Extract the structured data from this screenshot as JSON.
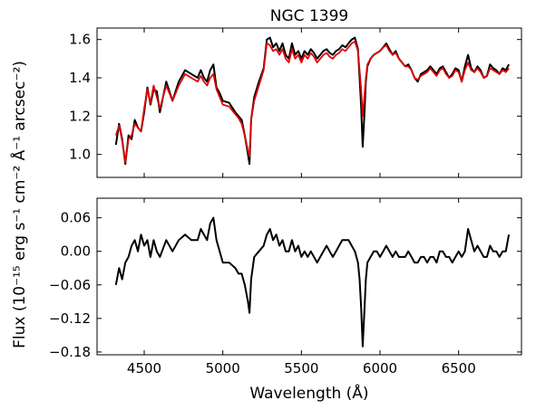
{
  "chart_data": [
    {
      "type": "line",
      "title": "NGC 1399",
      "xlabel": "",
      "ylabel": "",
      "xlim": [
        4200,
        6900
      ],
      "ylim": [
        0.88,
        1.66
      ],
      "x_ticks": [
        4500,
        5000,
        5500,
        6000,
        6500
      ],
      "y_ticks": [
        1.0,
        1.2,
        1.4,
        1.6
      ],
      "y_tick_labels": [
        "1.0",
        "1.2",
        "1.4",
        "1.6"
      ],
      "grid": false,
      "series": [
        {
          "color": "#000000",
          "x": [
            4320,
            4340,
            4360,
            4380,
            4400,
            4420,
            4440,
            4460,
            4480,
            4500,
            4520,
            4540,
            4560,
            4580,
            4600,
            4640,
            4680,
            4720,
            4760,
            4800,
            4840,
            4860,
            4880,
            4900,
            4920,
            4940,
            4960,
            4980,
            5000,
            5040,
            5080,
            5100,
            5120,
            5140,
            5160,
            5170,
            5180,
            5200,
            5230,
            5260,
            5280,
            5300,
            5320,
            5340,
            5360,
            5380,
            5400,
            5420,
            5440,
            5460,
            5480,
            5500,
            5520,
            5540,
            5560,
            5580,
            5600,
            5620,
            5640,
            5660,
            5680,
            5700,
            5720,
            5740,
            5760,
            5780,
            5800,
            5820,
            5840,
            5860,
            5870,
            5880,
            5890,
            5900,
            5910,
            5920,
            5940,
            5960,
            5980,
            6000,
            6020,
            6040,
            6060,
            6080,
            6100,
            6120,
            6140,
            6160,
            6180,
            6200,
            6220,
            6240,
            6260,
            6280,
            6300,
            6320,
            6340,
            6360,
            6380,
            6400,
            6420,
            6440,
            6460,
            6480,
            6500,
            6520,
            6540,
            6560,
            6580,
            6600,
            6620,
            6640,
            6660,
            6680,
            6700,
            6720,
            6740,
            6760,
            6780,
            6800,
            6820
          ],
          "y": [
            1.05,
            1.16,
            1.08,
            0.95,
            1.1,
            1.08,
            1.18,
            1.14,
            1.12,
            1.22,
            1.35,
            1.26,
            1.34,
            1.33,
            1.22,
            1.38,
            1.28,
            1.38,
            1.44,
            1.42,
            1.4,
            1.44,
            1.4,
            1.38,
            1.44,
            1.47,
            1.35,
            1.32,
            1.28,
            1.27,
            1.22,
            1.2,
            1.18,
            1.1,
            1.0,
            0.95,
            1.18,
            1.3,
            1.38,
            1.45,
            1.6,
            1.61,
            1.56,
            1.58,
            1.54,
            1.58,
            1.52,
            1.5,
            1.58,
            1.52,
            1.54,
            1.5,
            1.54,
            1.52,
            1.55,
            1.53,
            1.5,
            1.52,
            1.54,
            1.55,
            1.53,
            1.52,
            1.54,
            1.55,
            1.57,
            1.56,
            1.58,
            1.6,
            1.61,
            1.55,
            1.4,
            1.25,
            1.04,
            1.2,
            1.38,
            1.46,
            1.5,
            1.52,
            1.53,
            1.54,
            1.56,
            1.58,
            1.55,
            1.52,
            1.54,
            1.5,
            1.48,
            1.46,
            1.47,
            1.44,
            1.4,
            1.38,
            1.42,
            1.43,
            1.44,
            1.46,
            1.44,
            1.42,
            1.45,
            1.46,
            1.43,
            1.4,
            1.42,
            1.45,
            1.44,
            1.38,
            1.46,
            1.52,
            1.45,
            1.43,
            1.46,
            1.44,
            1.4,
            1.41,
            1.47,
            1.45,
            1.44,
            1.42,
            1.45,
            1.44,
            1.47
          ]
        },
        {
          "color": "#e00000",
          "x": [
            4320,
            4340,
            4360,
            4380,
            4400,
            4420,
            4440,
            4460,
            4480,
            4500,
            4520,
            4540,
            4560,
            4580,
            4600,
            4640,
            4680,
            4720,
            4760,
            4800,
            4840,
            4860,
            4880,
            4900,
            4920,
            4940,
            4960,
            4980,
            5000,
            5040,
            5080,
            5100,
            5120,
            5140,
            5160,
            5170,
            5180,
            5200,
            5230,
            5260,
            5280,
            5300,
            5320,
            5340,
            5360,
            5380,
            5400,
            5420,
            5440,
            5460,
            5480,
            5500,
            5520,
            5540,
            5560,
            5580,
            5600,
            5620,
            5640,
            5660,
            5680,
            5700,
            5720,
            5740,
            5760,
            5780,
            5800,
            5820,
            5840,
            5860,
            5870,
            5880,
            5890,
            5900,
            5910,
            5920,
            5940,
            5960,
            5980,
            6000,
            6020,
            6040,
            6060,
            6080,
            6100,
            6120,
            6140,
            6160,
            6180,
            6200,
            6220,
            6240,
            6260,
            6280,
            6300,
            6320,
            6340,
            6360,
            6380,
            6400,
            6420,
            6440,
            6460,
            6480,
            6500,
            6520,
            6540,
            6560,
            6580,
            6600,
            6620,
            6640,
            6660,
            6680,
            6700,
            6720,
            6740,
            6760,
            6780,
            6800,
            6820
          ],
          "y": [
            1.1,
            1.15,
            1.07,
            0.96,
            1.08,
            1.1,
            1.16,
            1.14,
            1.12,
            1.24,
            1.34,
            1.27,
            1.36,
            1.3,
            1.24,
            1.36,
            1.28,
            1.36,
            1.42,
            1.4,
            1.38,
            1.41,
            1.38,
            1.36,
            1.4,
            1.42,
            1.34,
            1.3,
            1.26,
            1.25,
            1.21,
            1.19,
            1.16,
            1.1,
            1.02,
            0.99,
            1.18,
            1.28,
            1.36,
            1.44,
            1.58,
            1.57,
            1.54,
            1.55,
            1.52,
            1.55,
            1.5,
            1.48,
            1.55,
            1.5,
            1.52,
            1.48,
            1.52,
            1.5,
            1.53,
            1.51,
            1.48,
            1.5,
            1.52,
            1.53,
            1.51,
            1.5,
            1.52,
            1.53,
            1.55,
            1.54,
            1.56,
            1.58,
            1.59,
            1.54,
            1.44,
            1.34,
            1.2,
            1.3,
            1.4,
            1.47,
            1.5,
            1.52,
            1.53,
            1.54,
            1.56,
            1.57,
            1.54,
            1.52,
            1.53,
            1.5,
            1.48,
            1.46,
            1.46,
            1.44,
            1.4,
            1.39,
            1.41,
            1.42,
            1.43,
            1.45,
            1.43,
            1.41,
            1.44,
            1.45,
            1.42,
            1.4,
            1.41,
            1.44,
            1.43,
            1.38,
            1.44,
            1.48,
            1.44,
            1.43,
            1.45,
            1.43,
            1.4,
            1.41,
            1.45,
            1.44,
            1.43,
            1.42,
            1.44,
            1.43,
            1.45
          ]
        }
      ]
    },
    {
      "type": "line",
      "title": "",
      "xlabel": "Wavelength (Å)",
      "ylabel": "",
      "xlim": [
        4200,
        6900
      ],
      "ylim": [
        -0.185,
        0.095
      ],
      "x_ticks": [
        4500,
        5000,
        5500,
        6000,
        6500
      ],
      "x_tick_labels": [
        "4500",
        "5000",
        "5500",
        "6000",
        "6500"
      ],
      "y_ticks": [
        0.06,
        0.0,
        -0.06,
        -0.12,
        -0.18
      ],
      "y_tick_labels": [
        "0.06",
        "0.00",
        "−0.06",
        "−0.12",
        "−0.18"
      ],
      "grid": false,
      "series": [
        {
          "color": "#000000",
          "x": [
            4320,
            4340,
            4360,
            4380,
            4400,
            4420,
            4440,
            4460,
            4480,
            4500,
            4520,
            4540,
            4560,
            4580,
            4600,
            4640,
            4680,
            4720,
            4760,
            4800,
            4840,
            4860,
            4880,
            4900,
            4920,
            4940,
            4960,
            4980,
            5000,
            5040,
            5080,
            5100,
            5120,
            5140,
            5160,
            5170,
            5180,
            5200,
            5230,
            5260,
            5280,
            5300,
            5320,
            5340,
            5360,
            5380,
            5400,
            5420,
            5440,
            5460,
            5480,
            5500,
            5520,
            5540,
            5560,
            5580,
            5600,
            5620,
            5640,
            5660,
            5680,
            5700,
            5720,
            5740,
            5760,
            5780,
            5800,
            5820,
            5840,
            5860,
            5870,
            5880,
            5890,
            5900,
            5910,
            5920,
            5940,
            5960,
            5980,
            6000,
            6020,
            6040,
            6060,
            6080,
            6100,
            6120,
            6140,
            6160,
            6180,
            6200,
            6220,
            6240,
            6260,
            6280,
            6300,
            6320,
            6340,
            6360,
            6380,
            6400,
            6420,
            6440,
            6460,
            6480,
            6500,
            6520,
            6540,
            6560,
            6580,
            6600,
            6620,
            6640,
            6660,
            6680,
            6700,
            6720,
            6740,
            6760,
            6780,
            6800,
            6820
          ],
          "y": [
            -0.06,
            -0.03,
            -0.05,
            -0.02,
            -0.01,
            0.01,
            0.02,
            0.0,
            0.03,
            0.01,
            0.02,
            -0.01,
            0.02,
            0.0,
            -0.01,
            0.02,
            0.0,
            0.02,
            0.03,
            0.02,
            0.02,
            0.04,
            0.03,
            0.02,
            0.05,
            0.06,
            0.02,
            0.0,
            -0.02,
            -0.02,
            -0.03,
            -0.04,
            -0.04,
            -0.06,
            -0.09,
            -0.11,
            -0.05,
            -0.01,
            0.0,
            0.01,
            0.03,
            0.04,
            0.02,
            0.03,
            0.01,
            0.02,
            0.0,
            0.0,
            0.02,
            0.0,
            0.01,
            -0.01,
            0.0,
            -0.01,
            0.0,
            -0.01,
            -0.02,
            -0.01,
            0.0,
            0.01,
            0.0,
            -0.01,
            0.0,
            0.01,
            0.02,
            0.02,
            0.02,
            0.01,
            0.0,
            -0.02,
            -0.05,
            -0.1,
            -0.17,
            -0.11,
            -0.05,
            -0.02,
            -0.01,
            0.0,
            0.0,
            -0.01,
            0.0,
            0.01,
            0.0,
            -0.01,
            0.0,
            -0.01,
            -0.01,
            -0.01,
            0.0,
            -0.01,
            -0.02,
            -0.02,
            -0.01,
            -0.01,
            -0.02,
            -0.01,
            -0.01,
            -0.02,
            0.0,
            0.0,
            -0.01,
            -0.01,
            -0.02,
            -0.01,
            0.0,
            -0.01,
            0.0,
            0.04,
            0.02,
            0.0,
            0.01,
            0.0,
            -0.01,
            -0.01,
            0.01,
            0.0,
            0.0,
            -0.01,
            0.0,
            0.0,
            0.03
          ]
        }
      ]
    }
  ],
  "shared_ylabel": "Flux (10⁻¹⁵ erg s⁻¹ cm⁻² Å⁻¹ arcsec⁻²)"
}
